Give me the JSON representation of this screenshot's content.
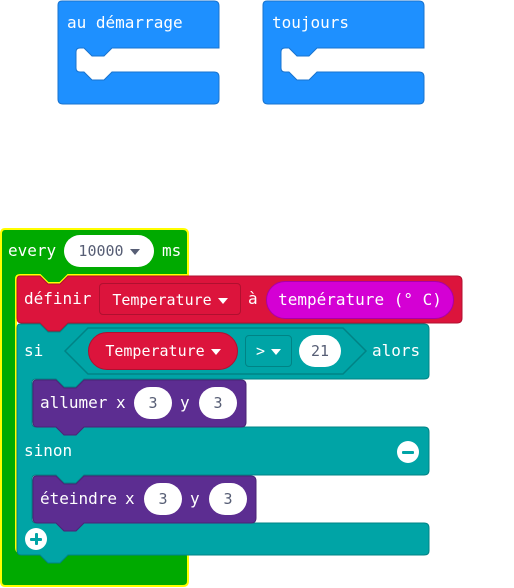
{
  "hat_blocks": {
    "on_start_label": "au démarrage",
    "forever_label": "toujours"
  },
  "every_block": {
    "label": "every",
    "interval": "10000",
    "unit": "ms"
  },
  "set_block": {
    "label": "définir",
    "variable": "Temperature",
    "to_label": "à",
    "value": "température (° C)"
  },
  "if_block": {
    "if_label": "si",
    "left_operand": "Temperature",
    "operator": ">",
    "right_operand": "21",
    "then_label": "alors",
    "else_label": "sinon"
  },
  "plot_block": {
    "label": "allumer",
    "x_label": "x",
    "x_value": "3",
    "y_label": "y",
    "y_value": "3"
  },
  "unplot_block": {
    "label": "éteindre",
    "x_label": "x",
    "x_value": "3",
    "y_label": "y",
    "y_value": "3"
  },
  "colors": {
    "basic_blue": "#1e90ff",
    "loops_green": "#00aa00",
    "highlight_yellow": "#ffff00",
    "variables_red": "#dc143c",
    "logic_teal": "#00a4a6",
    "input_magenta": "#d400d4",
    "led_purple": "#5c2d91"
  }
}
